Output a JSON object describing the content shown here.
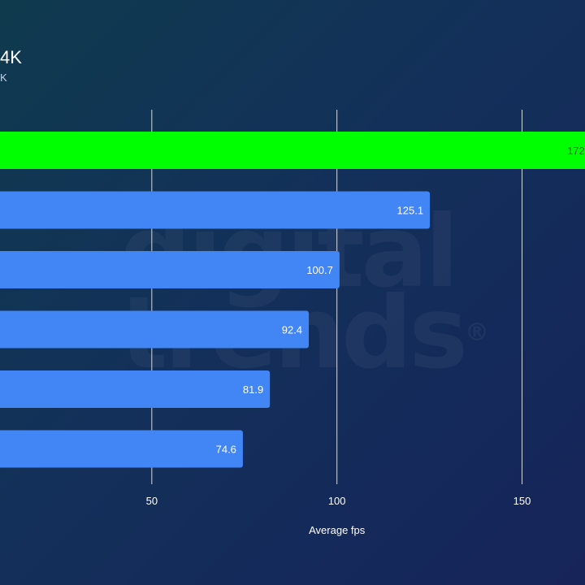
{
  "header": {
    "title": "4K",
    "subtitle": "K"
  },
  "watermark": {
    "line1": "digital",
    "line2": "trends",
    "mark": "®"
  },
  "colors": {
    "highlight": "#00ff00",
    "bar": "#4285f4",
    "grid": "#e8ecf2",
    "label_on_highlight": "#2a5a2a",
    "label_on_bar": "#ffffff"
  },
  "chart_data": {
    "type": "bar",
    "orientation": "horizontal",
    "categories": [
      "",
      "",
      "",
      "",
      "",
      ""
    ],
    "values": [
      172,
      125.1,
      100.7,
      92.4,
      81.9,
      74.6
    ],
    "value_labels": [
      "172",
      "125.1",
      "100.7",
      "92.4",
      "81.9",
      "74.6"
    ],
    "highlighted_index": 0,
    "xlabel": "Average fps",
    "ylabel": "",
    "xlim": [
      9,
      167
    ],
    "x_ticks": [
      50,
      100,
      150
    ],
    "x_tick_labels": [
      "50",
      "100",
      "150"
    ],
    "grid": true
  }
}
